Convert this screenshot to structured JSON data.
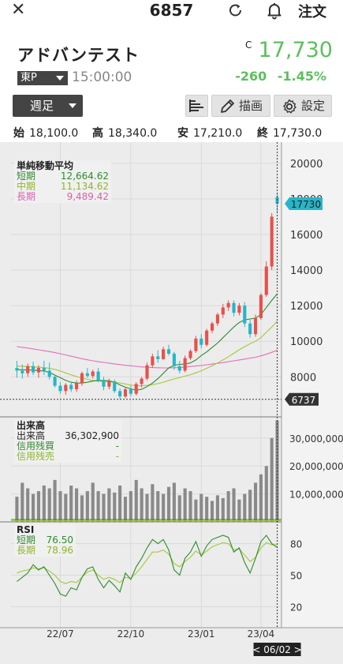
{
  "header": {
    "close_icon": "close-icon",
    "code": "6857",
    "order_label": "注文"
  },
  "stock": {
    "name": "アドバンテスト",
    "market": "東P",
    "time": "15:00:00",
    "c_mark": "C",
    "price": "17,730",
    "change": "-260",
    "change_pct": "-1.45%",
    "price_color": "#5cbf5c"
  },
  "controls": {
    "period": "週足",
    "draw_label": "描画",
    "settings_label": "設定"
  },
  "ohlc": {
    "open_label": "始",
    "open": "18,100.0",
    "high_label": "高",
    "high": "18,340.0",
    "low_label": "安",
    "low": "17,210.0",
    "close_label": "終",
    "close": "17,730.0"
  },
  "legends": {
    "ma_title": "単純移動平均",
    "ma_short_label": "短期",
    "ma_short_value": "12,664.62",
    "ma_mid_label": "中期",
    "ma_mid_value": "11,134.62",
    "ma_long_label": "長期",
    "ma_long_value": "9,489.42",
    "vol_title": "出来高",
    "vol_label": "出来高",
    "vol_value": "36,302,900",
    "margin_buy_label": "信用残買",
    "margin_buy_value": "-",
    "margin_sell_label": "信用残売",
    "margin_sell_value": "-",
    "rsi_title": "RSI",
    "rsi_short_label": "短期",
    "rsi_short_value": "76.50",
    "rsi_long_label": "長期",
    "rsi_long_value": "78.96"
  },
  "colors": {
    "up": "#e8504a",
    "down": "#27b5c8",
    "ma_short": "#2e8b2e",
    "ma_mid": "#a5c83a",
    "ma_long": "#e070b8",
    "volume": "#8a8a8a",
    "rsi_short": "#2e8b2e",
    "rsi_long": "#a5c83a",
    "last_price_badge": "#27b5c8",
    "low_badge": "#333333"
  },
  "chart_data": {
    "type": "candlestick",
    "interval": "weekly",
    "price_axis": {
      "ticks": [
        20000,
        18000,
        16000,
        14000,
        12000,
        10000,
        8000
      ],
      "ylim": [
        6550,
        20300
      ]
    },
    "x_ticks": [
      "22/07",
      "22/10",
      "23/01",
      "23/04"
    ],
    "cursor_label": "< 06/02 >",
    "last_price_label": "17730",
    "low_label": "6737",
    "candles": [
      {
        "o": 8500,
        "h": 8900,
        "l": 7950,
        "c": 8350
      },
      {
        "o": 8350,
        "h": 8700,
        "l": 7900,
        "c": 8200
      },
      {
        "o": 8200,
        "h": 8750,
        "l": 8000,
        "c": 8600
      },
      {
        "o": 8600,
        "h": 8850,
        "l": 8100,
        "c": 8250
      },
      {
        "o": 8250,
        "h": 8650,
        "l": 7950,
        "c": 8500
      },
      {
        "o": 8500,
        "h": 8900,
        "l": 8100,
        "c": 8350
      },
      {
        "o": 8350,
        "h": 8800,
        "l": 7850,
        "c": 8000
      },
      {
        "o": 8000,
        "h": 8100,
        "l": 7400,
        "c": 7500
      },
      {
        "o": 7500,
        "h": 7700,
        "l": 7050,
        "c": 7200
      },
      {
        "o": 7200,
        "h": 7650,
        "l": 7000,
        "c": 7550
      },
      {
        "o": 7550,
        "h": 7700,
        "l": 7150,
        "c": 7300
      },
      {
        "o": 7300,
        "h": 7800,
        "l": 7150,
        "c": 7650
      },
      {
        "o": 7650,
        "h": 8300,
        "l": 7500,
        "c": 8200
      },
      {
        "o": 8200,
        "h": 8500,
        "l": 7950,
        "c": 8050
      },
      {
        "o": 8050,
        "h": 8400,
        "l": 7900,
        "c": 8300
      },
      {
        "o": 8300,
        "h": 8500,
        "l": 7700,
        "c": 7800
      },
      {
        "o": 7800,
        "h": 8000,
        "l": 7250,
        "c": 7450
      },
      {
        "o": 7450,
        "h": 7900,
        "l": 7300,
        "c": 7750
      },
      {
        "o": 7750,
        "h": 7850,
        "l": 7100,
        "c": 7200
      },
      {
        "o": 7200,
        "h": 7350,
        "l": 6737,
        "c": 6900
      },
      {
        "o": 6900,
        "h": 7450,
        "l": 6800,
        "c": 7300
      },
      {
        "o": 7300,
        "h": 7500,
        "l": 6900,
        "c": 7050
      },
      {
        "o": 7050,
        "h": 7700,
        "l": 6950,
        "c": 7600
      },
      {
        "o": 7600,
        "h": 8000,
        "l": 7400,
        "c": 7900
      },
      {
        "o": 7900,
        "h": 8800,
        "l": 7800,
        "c": 8650
      },
      {
        "o": 8650,
        "h": 9300,
        "l": 8500,
        "c": 9150
      },
      {
        "o": 9150,
        "h": 9500,
        "l": 8800,
        "c": 9000
      },
      {
        "o": 9000,
        "h": 9700,
        "l": 8950,
        "c": 9550
      },
      {
        "o": 9550,
        "h": 9800,
        "l": 9200,
        "c": 9300
      },
      {
        "o": 9300,
        "h": 9400,
        "l": 8400,
        "c": 8600
      },
      {
        "o": 8600,
        "h": 8900,
        "l": 8200,
        "c": 8350
      },
      {
        "o": 8350,
        "h": 9200,
        "l": 8250,
        "c": 9050
      },
      {
        "o": 9050,
        "h": 9550,
        "l": 8950,
        "c": 9450
      },
      {
        "o": 9450,
        "h": 10300,
        "l": 9350,
        "c": 10150
      },
      {
        "o": 10150,
        "h": 10400,
        "l": 9600,
        "c": 9800
      },
      {
        "o": 9800,
        "h": 10700,
        "l": 9700,
        "c": 10600
      },
      {
        "o": 10600,
        "h": 11100,
        "l": 10450,
        "c": 11000
      },
      {
        "o": 11000,
        "h": 11600,
        "l": 10850,
        "c": 11500
      },
      {
        "o": 11500,
        "h": 12100,
        "l": 11300,
        "c": 11900
      },
      {
        "o": 11900,
        "h": 12300,
        "l": 11700,
        "c": 12150
      },
      {
        "o": 12150,
        "h": 12300,
        "l": 11400,
        "c": 11600
      },
      {
        "o": 11600,
        "h": 12150,
        "l": 11450,
        "c": 12000
      },
      {
        "o": 12000,
        "h": 12200,
        "l": 10800,
        "c": 11000
      },
      {
        "o": 11000,
        "h": 11200,
        "l": 10200,
        "c": 10400
      },
      {
        "o": 10400,
        "h": 11500,
        "l": 10250,
        "c": 11300
      },
      {
        "o": 11300,
        "h": 12700,
        "l": 11200,
        "c": 12600
      },
      {
        "o": 12600,
        "h": 14500,
        "l": 12500,
        "c": 14200
      },
      {
        "o": 14200,
        "h": 17200,
        "l": 14000,
        "c": 17000
      },
      {
        "o": 18100,
        "h": 18340,
        "l": 17210,
        "c": 17730
      }
    ],
    "ma_short": [
      8400,
      8400,
      8380,
      8380,
      8350,
      8330,
      8250,
      8100,
      7950,
      7800,
      7700,
      7650,
      7650,
      7700,
      7760,
      7800,
      7800,
      7780,
      7700,
      7550,
      7420,
      7320,
      7250,
      7300,
      7450,
      7650,
      7900,
      8200,
      8500,
      8650,
      8700,
      8720,
      8780,
      8950,
      9200,
      9400,
      9650,
      9900,
      10200,
      10500,
      10800,
      11050,
      11200,
      11250,
      11300,
      11500,
      11900,
      12300,
      12665
    ],
    "ma_mid": [
      8600,
      8600,
      8580,
      8560,
      8540,
      8520,
      8480,
      8420,
      8330,
      8220,
      8110,
      8020,
      7930,
      7860,
      7800,
      7760,
      7740,
      7720,
      7700,
      7660,
      7600,
      7540,
      7500,
      7500,
      7520,
      7560,
      7620,
      7700,
      7800,
      7880,
      7960,
      8040,
      8120,
      8220,
      8340,
      8480,
      8620,
      8780,
      8950,
      9130,
      9320,
      9520,
      9700,
      9860,
      10000,
      10200,
      10500,
      10800,
      11135
    ],
    "ma_long": [
      9700,
      9660,
      9620,
      9570,
      9520,
      9470,
      9420,
      9360,
      9300,
      9230,
      9160,
      9090,
      9020,
      8960,
      8900,
      8850,
      8810,
      8770,
      8730,
      8690,
      8650,
      8620,
      8590,
      8560,
      8540,
      8520,
      8510,
      8500,
      8500,
      8510,
      8530,
      8550,
      8580,
      8610,
      8640,
      8680,
      8720,
      8760,
      8800,
      8850,
      8900,
      8950,
      9000,
      9050,
      9100,
      9180,
      9270,
      9380,
      9489
    ],
    "volume": {
      "ticks": [
        30000000,
        20000000,
        10000000
      ],
      "max": 37000000,
      "values": [
        9000000,
        14000000,
        12000000,
        10000000,
        11000000,
        13000000,
        12000000,
        15000000,
        11000000,
        10000000,
        13000000,
        12000000,
        9500000,
        11000000,
        14000000,
        11000000,
        10000000,
        12000000,
        10500000,
        13000000,
        9000000,
        11000000,
        15000000,
        12000000,
        10000000,
        13500000,
        11000000,
        10000000,
        12500000,
        14000000,
        9500000,
        12000000,
        11000000,
        8000000,
        10000000,
        9000000,
        7500000,
        9500000,
        8500000,
        11000000,
        12000000,
        8000000,
        10000000,
        11500000,
        14000000,
        17000000,
        20000000,
        30000000,
        36302900
      ]
    },
    "rsi": {
      "ticks": [
        80,
        50,
        20
      ],
      "ylim": [
        0,
        100
      ],
      "short": [
        44,
        48,
        52,
        60,
        55,
        58,
        50,
        42,
        32,
        30,
        38,
        36,
        48,
        56,
        58,
        46,
        38,
        45,
        40,
        34,
        52,
        46,
        58,
        66,
        76,
        84,
        80,
        84,
        74,
        55,
        50,
        66,
        72,
        82,
        68,
        78,
        84,
        86,
        88,
        86,
        72,
        76,
        62,
        52,
        66,
        82,
        88,
        80,
        76.5
      ],
      "long": [
        52,
        54,
        55,
        57,
        56,
        57,
        54,
        50,
        44,
        42,
        44,
        43,
        48,
        53,
        55,
        50,
        46,
        48,
        46,
        43,
        48,
        47,
        52,
        58,
        65,
        72,
        72,
        74,
        70,
        61,
        58,
        63,
        67,
        73,
        69,
        73,
        77,
        79,
        81,
        80,
        74,
        75,
        69,
        63,
        67,
        76,
        81,
        79,
        78.96
      ]
    }
  }
}
